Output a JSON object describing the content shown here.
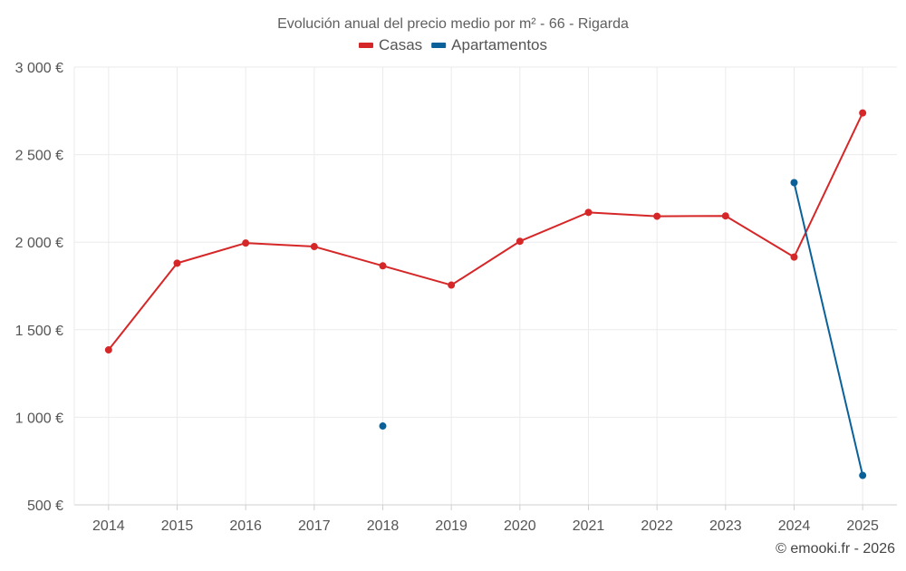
{
  "chart_data": {
    "type": "line",
    "title": "Evolución anual del precio medio por m² - 66 - Rigarda",
    "xlabel": "",
    "ylabel": "",
    "categories": [
      "2014",
      "2015",
      "2016",
      "2017",
      "2018",
      "2019",
      "2020",
      "2021",
      "2022",
      "2023",
      "2024",
      "2025"
    ],
    "ylim": [
      500,
      3000
    ],
    "y_ticks": [
      500,
      1000,
      1500,
      2000,
      2500,
      3000
    ],
    "y_tick_labels": [
      "500 €",
      "1 000 €",
      "1 500 €",
      "2 000 €",
      "2 500 €",
      "3 000 €"
    ],
    "grid": true,
    "legend_position": "top-center",
    "series": [
      {
        "name": "Casas",
        "color": "#d62728",
        "values": [
          1385,
          1880,
          1995,
          1975,
          1865,
          1755,
          2005,
          2170,
          2148,
          2150,
          1915,
          2738
        ]
      },
      {
        "name": "Apartamentos",
        "color": "#0a6199",
        "values": [
          null,
          null,
          null,
          null,
          950,
          null,
          null,
          null,
          null,
          null,
          2340,
          668
        ]
      }
    ],
    "credit": "© emooki.fr - 2026"
  }
}
